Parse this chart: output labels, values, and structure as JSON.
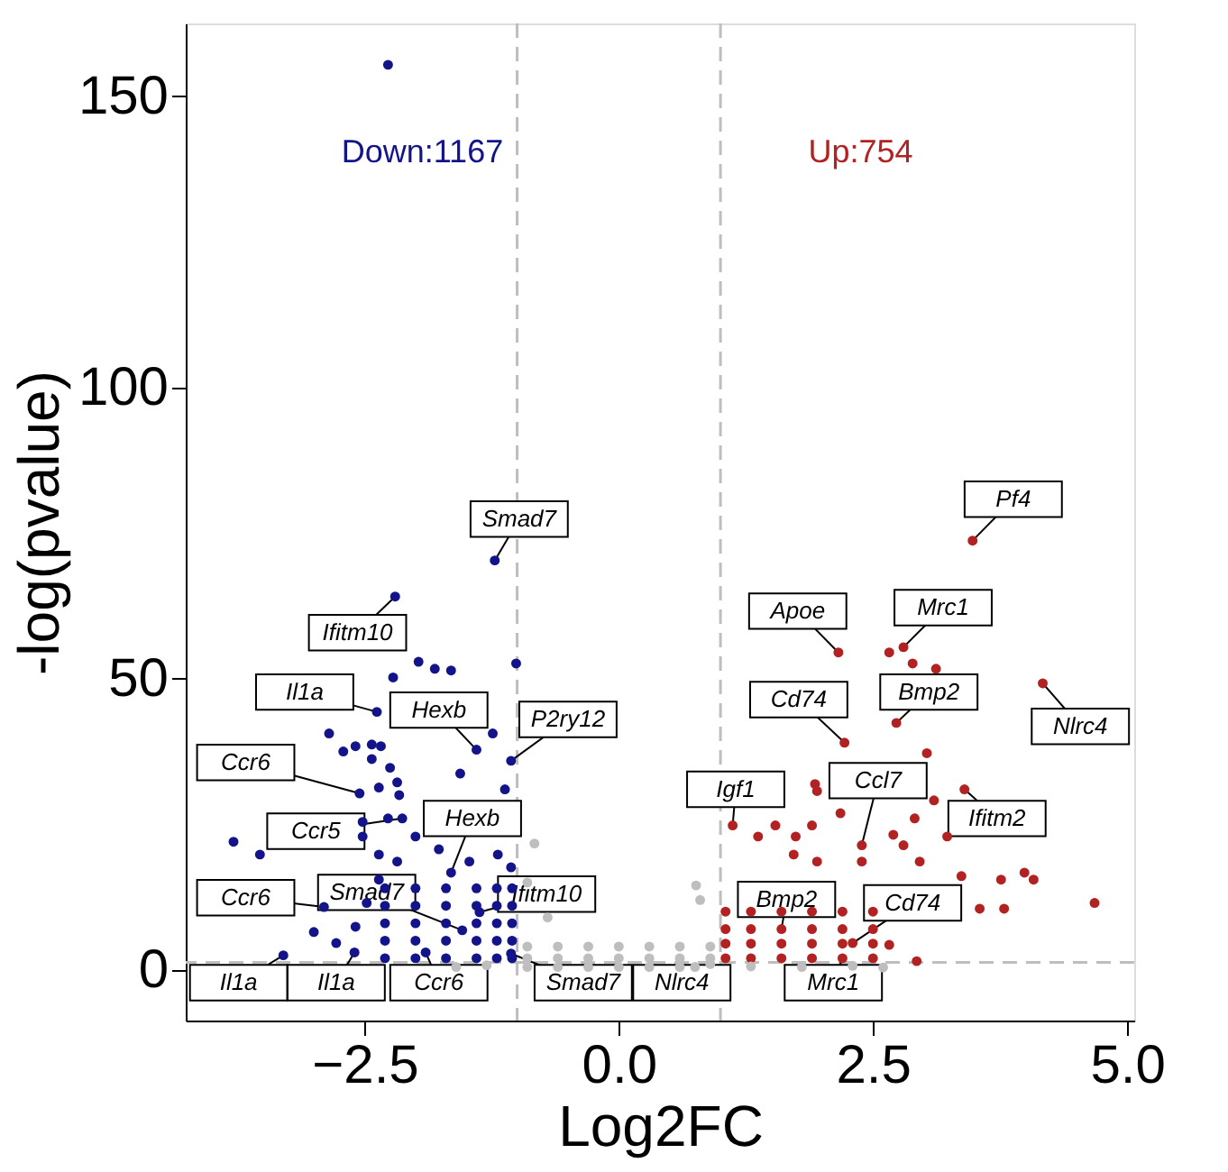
{
  "chart_data": {
    "type": "scatter",
    "xlabel": "Log2FC",
    "ylabel": "-log(pvalue)",
    "xlim": [
      -4.26,
      5.07
    ],
    "ylim": [
      -8.7,
      162.5
    ],
    "xticks": [
      {
        "value": -2.5,
        "label": "−2.5"
      },
      {
        "value": 0,
        "label": "0.0"
      },
      {
        "value": 2.5,
        "label": "2.5"
      },
      {
        "value": 5,
        "label": "5.0"
      }
    ],
    "yticks": [
      0,
      50,
      100,
      150
    ],
    "grid": false,
    "legend": false,
    "marker": "circle",
    "series": [
      {
        "name": "Down:1167",
        "color": "#14148a",
        "x": [
          -2.27,
          -1.22,
          -2.2,
          -1.01,
          -1.97,
          -1.81,
          -1.65,
          -2.22,
          -2.38,
          -1.24,
          -1.4,
          -1.06,
          -2.85,
          -2.71,
          -2.59,
          -2.43,
          -2.34,
          -2.43,
          -2.25,
          -1.56,
          -2.55,
          -2.36,
          -2.18,
          -2.16,
          -1.12,
          -3.79,
          -3.53,
          -2.52,
          -2.27,
          -2.52,
          -2.36,
          -2.18,
          -3.0,
          -2.78,
          -2.59,
          -2.48,
          -2.36,
          -2.0,
          -1.77,
          -1.47,
          -1.19,
          -1.06,
          -2.3,
          -2.0,
          -1.7,
          -1.4,
          -1.2,
          -1.05,
          -2.3,
          -2.0,
          -1.7,
          -1.4,
          -1.2,
          -1.05,
          -2.3,
          -2.0,
          -1.7,
          -1.4,
          -1.2,
          -1.05,
          -2.3,
          -2.0,
          -1.7,
          -1.4,
          -1.2,
          -1.05,
          -2.3,
          -2.0,
          -1.7,
          -1.4,
          -1.2,
          -1.05,
          -2.13,
          -1.65,
          -2.9,
          -1.54,
          -1.37,
          -3.3,
          -2.6,
          -1.9,
          -1.06
        ],
        "values": [
          155.4,
          70.3,
          64.1,
          52.6,
          52.9,
          51.7,
          51.4,
          50.2,
          44.3,
          40.6,
          37.8,
          35.9,
          40.6,
          37.5,
          38.4,
          38.7,
          38.4,
          36.2,
          34.7,
          33.7,
          30.3,
          31.3,
          32.2,
          30.0,
          31,
          22,
          19.8,
          25.4,
          26,
          22.9,
          19.8,
          18.6,
          6.5,
          4.6,
          7.4,
          11.5,
          15.5,
          22.9,
          20.7,
          18.6,
          19.8,
          17.6,
          2,
          2,
          2,
          2,
          2,
          2,
          5,
          5,
          5,
          5,
          5,
          5,
          8,
          8,
          8,
          8,
          8,
          8,
          11,
          11,
          11,
          11,
          11,
          11,
          14,
          14,
          14,
          14,
          14,
          14,
          26,
          16.7,
          10.8,
          6.8,
          9.9,
          2.5,
          3,
          3,
          2.8
        ]
      },
      {
        "name": "Up:754",
        "color": "#b22222",
        "x": [
          3.48,
          2.16,
          2.66,
          2.8,
          2.89,
          3.12,
          4.17,
          2.73,
          2.22,
          3.03,
          1.93,
          1.95,
          2.18,
          3.1,
          3.4,
          2.91,
          1.54,
          1.12,
          1.9,
          1.37,
          1.74,
          2.7,
          2.8,
          2.39,
          3.23,
          3.37,
          3.76,
          3.99,
          4.08,
          4.68,
          3.79,
          3.55,
          2.96,
          2.39,
          1.72,
          1.95,
          2.93,
          2.66,
          1.05,
          1.3,
          1.6,
          1.9,
          2.2,
          2.5,
          1.05,
          1.3,
          1.6,
          1.9,
          2.2,
          2.5,
          1.05,
          1.3,
          1.6,
          1.9,
          2.2,
          2.5,
          1.05,
          1.3,
          1.6,
          1.9,
          2.2,
          2.5,
          2.3
        ],
        "values": [
          73.7,
          54.5,
          54.5,
          55.4,
          52.6,
          51.7,
          49.2,
          42.4,
          39,
          37.2,
          31.9,
          30.7,
          26.9,
          29.1,
          31,
          26,
          24.8,
          24.8,
          24.8,
          22.9,
          22.9,
          23.2,
          21.4,
          21.4,
          22.9,
          16.1,
          15.5,
          16.7,
          15.5,
          11.5,
          10.5,
          10.5,
          18.6,
          18.6,
          19.8,
          18.6,
          1.5,
          4.3,
          2,
          2,
          2,
          2,
          2,
          2,
          4.5,
          4.5,
          4.5,
          4.5,
          4.5,
          4.5,
          7,
          7,
          7,
          7,
          7,
          7,
          10,
          10,
          10,
          10,
          10,
          10,
          4.6
        ]
      },
      {
        "color": "#bebebe",
        "x": [
          -0.9,
          -0.6,
          -0.3,
          0,
          0.3,
          0.6,
          0.75,
          -0.9,
          -0.6,
          -0.3,
          0,
          0.3,
          0.6,
          0.9,
          -0.9,
          -0.6,
          -0.3,
          0,
          0.3,
          0.6,
          0.9,
          -0.9,
          -0.83,
          -0.7,
          0.8,
          0.76,
          -1.6,
          -1.3,
          1.3,
          1.8,
          2.3,
          2.6,
          0.9
        ],
        "values": [
          0.5,
          0.5,
          0.5,
          0.5,
          0.5,
          0.5,
          0.5,
          2,
          2,
          2,
          2,
          2,
          2,
          2,
          4,
          4,
          4,
          4,
          4,
          4,
          4,
          15,
          21.7,
          9,
          12,
          14.5,
          0.5,
          0.8,
          0.6,
          0.5,
          0.7,
          0.4,
          1.0
        ]
      }
    ],
    "ref_lines": [
      {
        "axis": "x",
        "value": -1,
        "color": "#bebebe",
        "line_style": "dashed"
      },
      {
        "axis": "x",
        "value": 1,
        "color": "#bebebe",
        "line_style": "dashed"
      },
      {
        "axis": "y",
        "value": 1.3,
        "color": "#bebebe",
        "line_style": "dashed"
      }
    ],
    "annotations": [
      {
        "text": "Smad7",
        "x": -1.22,
        "y": 70.3
      },
      {
        "text": "Ifitm10",
        "x": -2.2,
        "y": 64.1
      },
      {
        "text": "Il1a",
        "x": -2.38,
        "y": 44.3
      },
      {
        "text": "Hexb",
        "x": -1.4,
        "y": 37.8
      },
      {
        "text": "P2ry12",
        "x": -1.06,
        "y": 35.9
      },
      {
        "text": "Ccr6",
        "x": -2.55,
        "y": 30.3
      },
      {
        "text": "Ccr5",
        "x": -2.13,
        "y": 26
      },
      {
        "text": "Hexb",
        "x": -1.65,
        "y": 16.7
      },
      {
        "text": "Ccr6",
        "x": -2.9,
        "y": 10.8
      },
      {
        "text": "Smad7",
        "x": -1.54,
        "y": 6.8
      },
      {
        "text": "Ifitm10",
        "x": -1.37,
        "y": 9.9
      },
      {
        "text": "Il1a",
        "x": -3.3,
        "y": 2.5
      },
      {
        "text": "Il1a",
        "x": -2.6,
        "y": 3
      },
      {
        "text": "Ccr6",
        "x": -1.9,
        "y": 3
      },
      {
        "text": "Smad7",
        "x": -1.06,
        "y": 2.8
      },
      {
        "text": "Nlrc4",
        "x": 0.9,
        "y": 1.0
      },
      {
        "text": "Mrc1",
        "x": 2.2,
        "y": 2
      },
      {
        "text": "Bmp2",
        "x": 1.6,
        "y": 7
      },
      {
        "text": "Cd74",
        "x": 2.3,
        "y": 4.6
      },
      {
        "text": "Igf1",
        "x": 1.12,
        "y": 24.8
      },
      {
        "text": "Ccl7",
        "x": 2.39,
        "y": 21.4
      },
      {
        "text": "Ifitm2",
        "x": 3.4,
        "y": 31
      },
      {
        "text": "Cd74",
        "x": 2.22,
        "y": 39
      },
      {
        "text": "Bmp2",
        "x": 2.73,
        "y": 42.4
      },
      {
        "text": "Nlrc4",
        "x": 4.17,
        "y": 49.2
      },
      {
        "text": "Apoe",
        "x": 2.16,
        "y": 54.5
      },
      {
        "text": "Mrc1",
        "x": 2.8,
        "y": 55.4
      },
      {
        "text": "Pf4",
        "x": 3.48,
        "y": 73.7
      }
    ]
  }
}
